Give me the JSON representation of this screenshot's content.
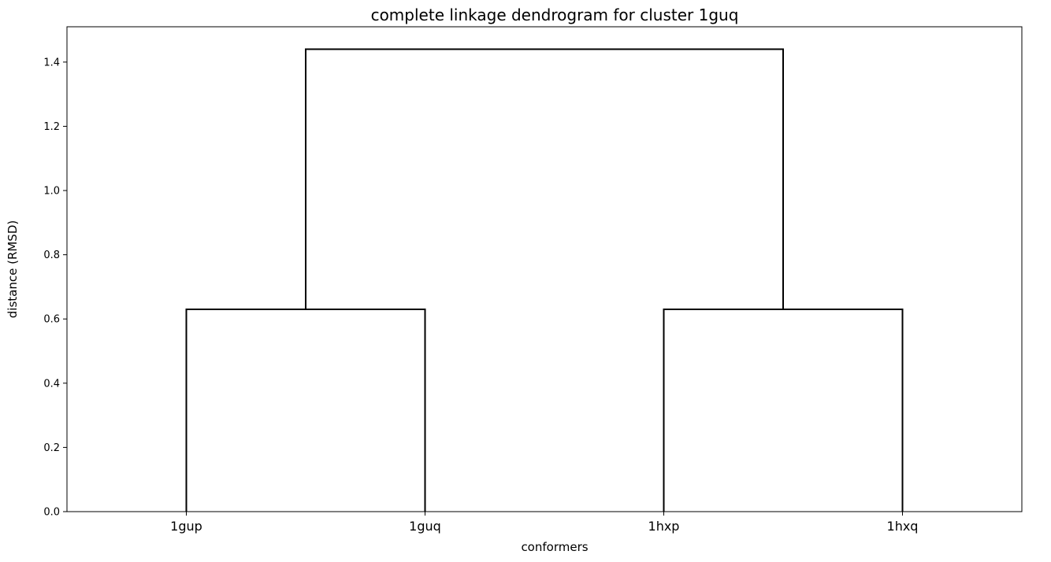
{
  "chart_data": {
    "type": "dendrogram",
    "title": "complete linkage dendrogram for cluster 1guq",
    "xlabel": "conformers",
    "ylabel": "distance (RMSD)",
    "ylim": [
      0,
      1.51
    ],
    "yticks": [
      "0.0",
      "0.2",
      "0.4",
      "0.6",
      "0.8",
      "1.0",
      "1.2",
      "1.4"
    ],
    "leaves": [
      "1gup",
      "1guq",
      "1hxp",
      "1hxq"
    ],
    "merges": [
      {
        "name": "merge-1gup-1guq",
        "left": 0,
        "right": 1,
        "height": 0.63
      },
      {
        "name": "merge-1hxp-1hxq",
        "left": 2,
        "right": 3,
        "height": 0.63
      },
      {
        "name": "merge-root",
        "left": "merge-1gup-1guq",
        "right": "merge-1hxp-1hxq",
        "height": 1.44
      }
    ],
    "grid": false,
    "line_color": "#000000"
  }
}
